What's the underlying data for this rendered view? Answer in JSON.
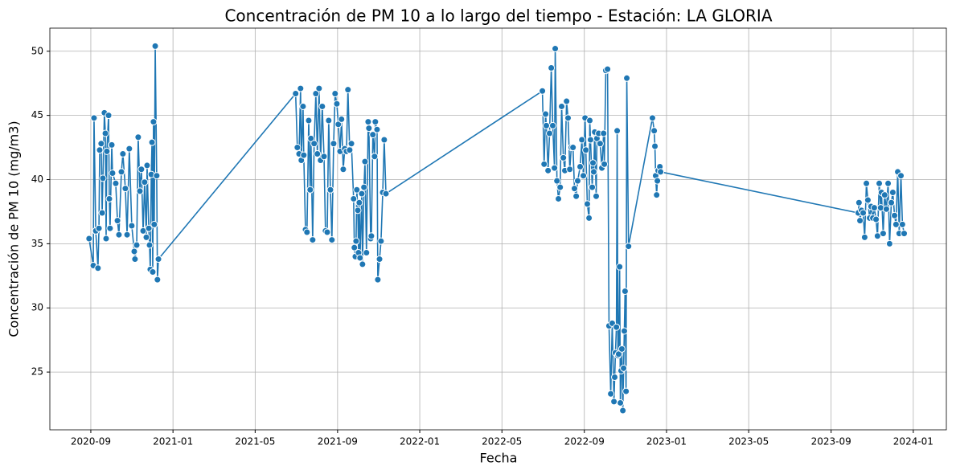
{
  "chart_data": {
    "type": "line",
    "title": "Concentración de PM 10 a lo largo del tiempo - Estación: LA GLORIA",
    "x_label": "Fecha",
    "y_label": "Concentración de PM 10 (mg/m3)",
    "color": "#1f77b4",
    "grid": true,
    "markers": true,
    "xlim": [
      2020.501,
      2024.134
    ],
    "ylim": [
      20.5,
      51.8
    ],
    "xticks": [
      {
        "value": 2020.667,
        "label": "2020-09"
      },
      {
        "value": 2021.0,
        "label": "2021-01"
      },
      {
        "value": 2021.333,
        "label": "2021-05"
      },
      {
        "value": 2021.667,
        "label": "2021-09"
      },
      {
        "value": 2022.0,
        "label": "2022-01"
      },
      {
        "value": 2022.333,
        "label": "2022-05"
      },
      {
        "value": 2022.667,
        "label": "2022-09"
      },
      {
        "value": 2023.0,
        "label": "2023-01"
      },
      {
        "value": 2023.333,
        "label": "2023-05"
      },
      {
        "value": 2023.667,
        "label": "2023-09"
      },
      {
        "value": 2024.0,
        "label": "2024-01"
      }
    ],
    "yticks": [
      25,
      30,
      35,
      40,
      45,
      50
    ],
    "x": [
      2020.66,
      2020.677,
      2020.68,
      2020.687,
      2020.696,
      2020.7,
      2020.703,
      2020.709,
      2020.713,
      2020.716,
      2020.722,
      2020.726,
      2020.729,
      2020.732,
      2020.739,
      2020.742,
      2020.745,
      2020.752,
      2020.755,
      2020.768,
      2020.775,
      2020.781,
      2020.791,
      2020.797,
      2020.807,
      2020.814,
      2020.823,
      2020.833,
      2020.843,
      2020.846,
      2020.853,
      2020.859,
      2020.866,
      2020.872,
      2020.879,
      2020.885,
      2020.892,
      2020.895,
      2020.902,
      2020.905,
      2020.908,
      2020.912,
      2020.915,
      2020.918,
      2020.921,
      2020.924,
      2020.928,
      2020.934,
      2020.937,
      2020.941,
      2021.497,
      2021.504,
      2021.511,
      2021.517,
      2021.52,
      2021.527,
      2021.53,
      2021.537,
      2021.543,
      2021.55,
      2021.556,
      2021.559,
      2021.566,
      2021.572,
      2021.579,
      2021.585,
      2021.592,
      2021.598,
      2021.605,
      2021.612,
      2021.618,
      2021.625,
      2021.631,
      2021.638,
      2021.644,
      2021.651,
      2021.657,
      2021.664,
      2021.67,
      2021.677,
      2021.683,
      2021.69,
      2021.696,
      2021.703,
      2021.709,
      2021.716,
      2021.723,
      2021.732,
      2021.735,
      2021.739,
      2021.742,
      2021.745,
      2021.749,
      2021.752,
      2021.755,
      2021.758,
      2021.765,
      2021.768,
      2021.774,
      2021.778,
      2021.784,
      2021.791,
      2021.794,
      2021.801,
      2021.804,
      2021.81,
      2021.817,
      2021.82,
      2021.827,
      2021.83,
      2021.837,
      2021.843,
      2021.85,
      2021.856,
      2021.863,
      2022.497,
      2022.504,
      2022.51,
      2022.513,
      2022.52,
      2022.526,
      2022.533,
      2022.539,
      2022.546,
      2022.549,
      2022.556,
      2022.562,
      2022.569,
      2022.575,
      2022.582,
      2022.588,
      2022.595,
      2022.601,
      2022.608,
      2022.614,
      2022.621,
      2022.627,
      2022.634,
      2022.64,
      2022.65,
      2022.657,
      2022.663,
      2022.67,
      2022.673,
      2022.679,
      2022.686,
      2022.689,
      2022.692,
      2022.699,
      2022.702,
      2022.705,
      2022.709,
      2022.715,
      2022.718,
      2022.725,
      2022.731,
      2022.738,
      2022.745,
      2022.748,
      2022.754,
      2022.761,
      2022.767,
      2022.774,
      2022.78,
      2022.787,
      2022.79,
      2022.793,
      2022.797,
      2022.8,
      2022.803,
      2022.806,
      2022.81,
      2022.813,
      2022.816,
      2022.819,
      2022.823,
      2022.826,
      2022.829,
      2022.832,
      2022.836,
      2022.839,
      2022.846,
      2022.943,
      2022.95,
      2022.953,
      2022.956,
      2022.96,
      2022.963,
      2022.966,
      2022.973,
      2022.976,
      2023.777,
      2023.78,
      2023.784,
      2023.79,
      2023.797,
      2023.803,
      2023.81,
      2023.816,
      2023.823,
      2023.829,
      2023.836,
      2023.842,
      2023.849,
      2023.855,
      2023.862,
      2023.868,
      2023.871,
      2023.878,
      2023.884,
      2023.891,
      2023.898,
      2023.904,
      2023.911,
      2023.917,
      2023.924,
      2023.93,
      2023.937,
      2023.943,
      2023.95,
      2023.956,
      2023.963
    ],
    "values": [
      35.4,
      33.3,
      44.8,
      36.0,
      33.1,
      36.2,
      42.3,
      42.8,
      37.4,
      40.1,
      45.2,
      43.6,
      35.4,
      42.2,
      45.0,
      38.5,
      36.2,
      42.7,
      40.5,
      39.7,
      36.8,
      35.7,
      40.6,
      42.0,
      39.3,
      35.7,
      42.4,
      36.4,
      34.4,
      33.8,
      34.9,
      43.3,
      39.1,
      40.8,
      36.0,
      39.8,
      35.5,
      41.1,
      36.2,
      34.9,
      33.0,
      40.4,
      42.9,
      32.8,
      44.5,
      36.5,
      50.4,
      40.3,
      32.2,
      33.8,
      46.7,
      42.5,
      42.0,
      47.1,
      41.5,
      45.7,
      41.9,
      36.1,
      35.9,
      44.6,
      39.2,
      43.2,
      35.3,
      42.8,
      46.7,
      42.0,
      47.1,
      41.5,
      45.7,
      41.8,
      36.0,
      35.9,
      44.6,
      39.2,
      35.3,
      42.8,
      46.7,
      45.9,
      44.3,
      42.2,
      44.7,
      40.8,
      42.4,
      42.2,
      47.0,
      42.3,
      42.8,
      38.5,
      34.7,
      34.0,
      35.2,
      39.2,
      37.6,
      34.3,
      38.2,
      33.9,
      38.9,
      33.4,
      39.4,
      41.4,
      34.3,
      44.5,
      44.0,
      35.4,
      35.6,
      43.5,
      41.8,
      44.5,
      43.9,
      32.2,
      33.8,
      35.2,
      39.0,
      43.1,
      38.9,
      46.9,
      41.2,
      45.1,
      44.2,
      40.7,
      43.6,
      48.7,
      44.2,
      40.9,
      50.2,
      39.9,
      38.5,
      39.4,
      45.7,
      41.7,
      40.7,
      46.1,
      44.8,
      40.8,
      42.5,
      42.5,
      39.3,
      38.7,
      39.9,
      41.0,
      43.1,
      40.3,
      44.8,
      42.3,
      38.1,
      37.0,
      44.6,
      43.1,
      39.4,
      41.3,
      40.6,
      43.7,
      38.7,
      43.2,
      43.6,
      42.8,
      40.9,
      43.6,
      41.2,
      48.5,
      48.6,
      28.6,
      23.3,
      28.8,
      22.7,
      24.6,
      26.5,
      28.5,
      43.8,
      26.3,
      26.4,
      33.2,
      22.6,
      25.1,
      26.8,
      22.0,
      25.3,
      28.2,
      31.3,
      23.5,
      47.9,
      34.8,
      44.8,
      43.8,
      42.6,
      40.3,
      38.8,
      39.9,
      40.7,
      41.0,
      40.6,
      37.4,
      38.2,
      36.8,
      37.6,
      37.4,
      35.5,
      39.7,
      38.4,
      37.0,
      37.9,
      37.0,
      37.8,
      36.9,
      35.6,
      39.7,
      37.8,
      39.0,
      35.8,
      38.8,
      37.7,
      39.7,
      35.0,
      38.2,
      39.0,
      37.2,
      36.5,
      40.6,
      35.8,
      40.3,
      36.5,
      35.8
    ]
  }
}
